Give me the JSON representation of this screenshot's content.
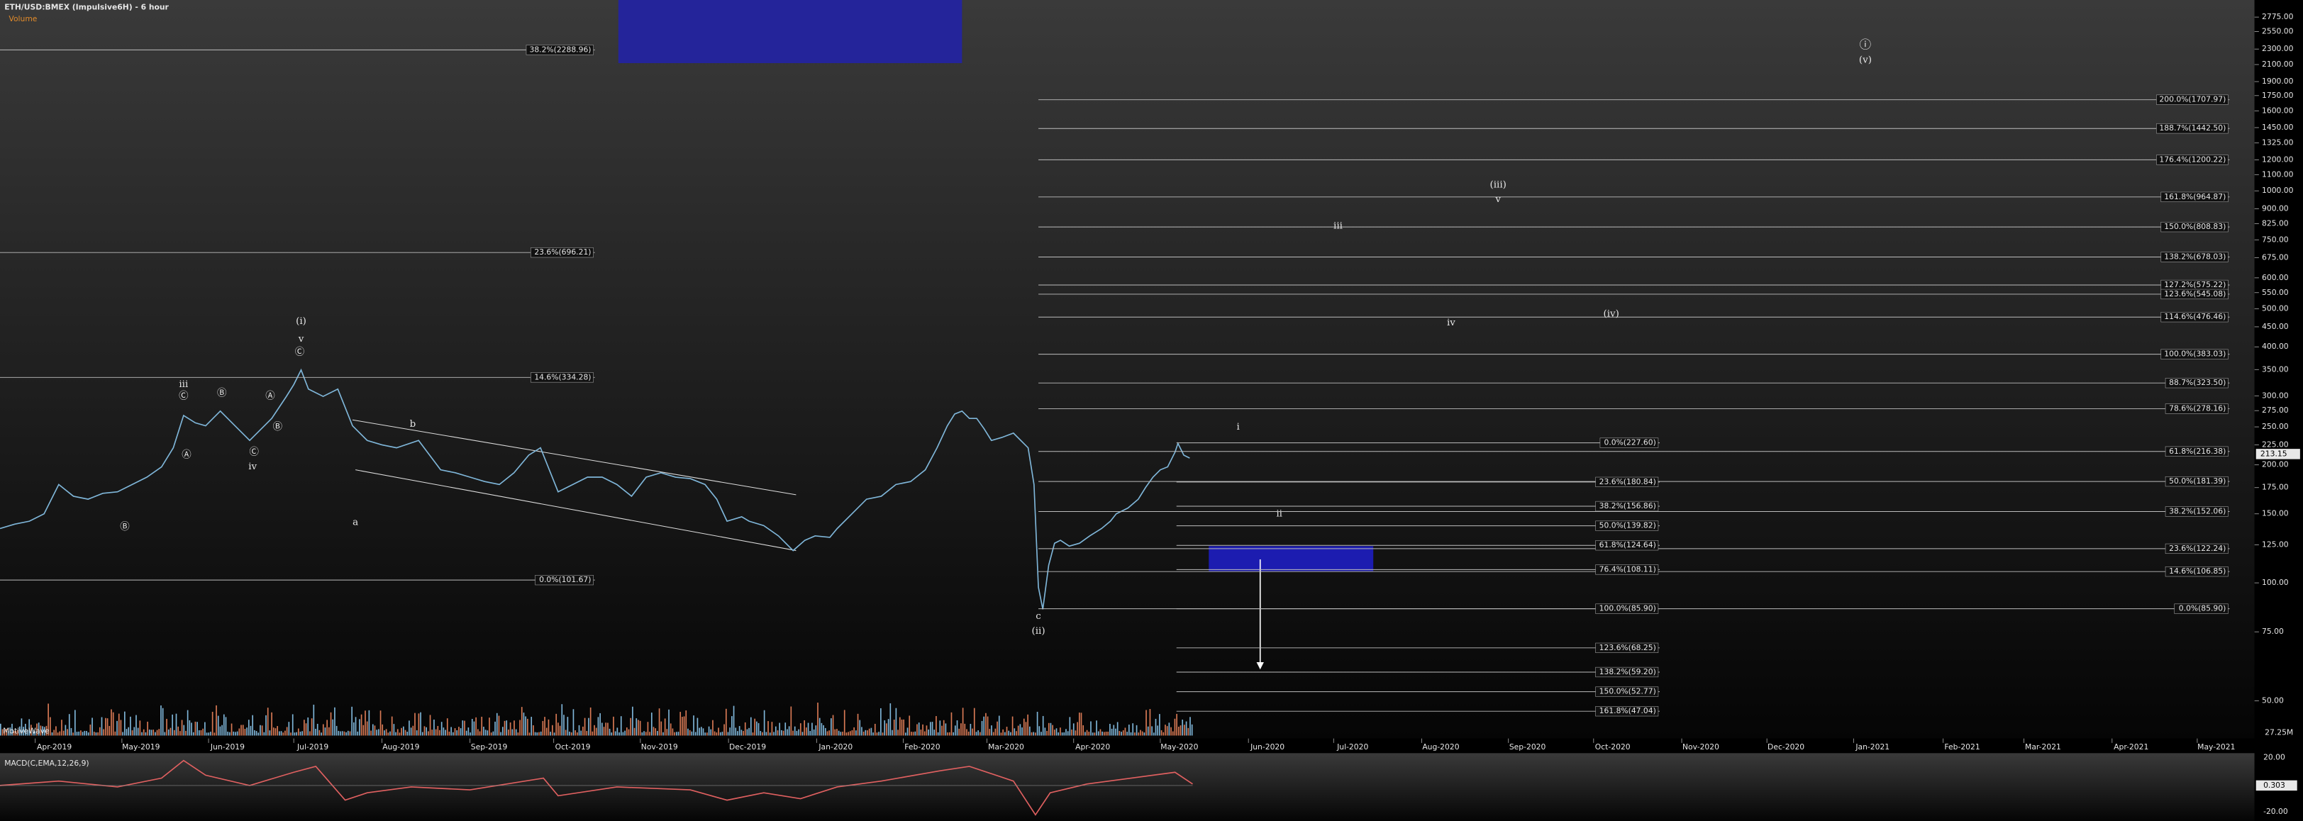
{
  "header": {
    "title": "ETH/USD:BMEX (Impulsive6H) - 6 hour",
    "volume_label": "Volume",
    "watermark": "MotiveWave"
  },
  "price_axis": {
    "scale": "log",
    "ticks": [
      {
        "value": 2775,
        "label": "2775.00"
      },
      {
        "value": 2550,
        "label": "2550.00"
      },
      {
        "value": 2300,
        "label": "2300.00"
      },
      {
        "value": 2100,
        "label": "2100.00"
      },
      {
        "value": 1900,
        "label": "1900.00"
      },
      {
        "value": 1750,
        "label": "1750.00"
      },
      {
        "value": 1600,
        "label": "1600.00"
      },
      {
        "value": 1450,
        "label": "1450.00"
      },
      {
        "value": 1325,
        "label": "1325.00"
      },
      {
        "value": 1200,
        "label": "1200.00"
      },
      {
        "value": 1100,
        "label": "1100.00"
      },
      {
        "value": 1000,
        "label": "1000.00"
      },
      {
        "value": 900,
        "label": "900.00"
      },
      {
        "value": 825,
        "label": "825.00"
      },
      {
        "value": 750,
        "label": "750.00"
      },
      {
        "value": 675,
        "label": "675.00"
      },
      {
        "value": 600,
        "label": "600.00"
      },
      {
        "value": 550,
        "label": "550.00"
      },
      {
        "value": 500,
        "label": "500.00"
      },
      {
        "value": 450,
        "label": "450.00"
      },
      {
        "value": 400,
        "label": "400.00"
      },
      {
        "value": 350,
        "label": "350.00"
      },
      {
        "value": 300,
        "label": "300.00"
      },
      {
        "value": 275,
        "label": "275.00"
      },
      {
        "value": 250,
        "label": "250.00"
      },
      {
        "value": 225,
        "label": "225.00"
      },
      {
        "value": 200,
        "label": "200.00"
      },
      {
        "value": 175,
        "label": "175.00"
      },
      {
        "value": 150,
        "label": "150.00"
      },
      {
        "value": 125,
        "label": "125.00"
      },
      {
        "value": 100,
        "label": "100.00"
      },
      {
        "value": 75,
        "label": "75.00"
      },
      {
        "value": 50,
        "label": "50.00"
      }
    ],
    "last_price": {
      "value": 213.15,
      "label": "213.15"
    }
  },
  "time_axis": {
    "labels": [
      "Apr-2019",
      "May-2019",
      "Jun-2019",
      "Jul-2019",
      "Aug-2019",
      "Sep-2019",
      "Oct-2019",
      "Nov-2019",
      "Dec-2019",
      "Jan-2020",
      "Feb-2020",
      "Mar-2020",
      "Apr-2020",
      "May-2020",
      "Jun-2020",
      "Jul-2020",
      "Aug-2020",
      "Sep-2020",
      "Oct-2020",
      "Nov-2020",
      "Dec-2020",
      "Jan-2021",
      "Feb-2021",
      "Mar-2021",
      "Apr-2021",
      "May-2021"
    ]
  },
  "fib_groups": [
    {
      "levels": [
        {
          "label": "38.2%(2288.96)",
          "price": 2288.96
        },
        {
          "label": "23.6%(696.21)",
          "price": 696.21
        },
        {
          "label": "14.6%(334.28)",
          "price": 334.28
        },
        {
          "label": "0.0%(101.67)",
          "price": 101.67
        }
      ]
    },
    {
      "levels": [
        {
          "label": "200.0%(1707.97)",
          "price": 1707.97
        },
        {
          "label": "188.7%(1442.50)",
          "price": 1442.5
        },
        {
          "label": "176.4%(1200.22)",
          "price": 1200.22
        },
        {
          "label": "161.8%(964.87)",
          "price": 964.87
        },
        {
          "label": "150.0%(808.83)",
          "price": 808.83
        },
        {
          "label": "138.2%(678.03)",
          "price": 678.03
        },
        {
          "label": "127.2%(575.22)",
          "price": 575.22
        },
        {
          "label": "123.6%(545.08)",
          "price": 545.08
        },
        {
          "label": "114.6%(476.46)",
          "price": 476.46
        },
        {
          "label": "100.0%(383.03)",
          "price": 383.03
        },
        {
          "label": "88.7%(323.50)",
          "price": 323.5
        },
        {
          "label": "78.6%(278.16)",
          "price": 278.16
        },
        {
          "label": "61.8%(216.38)",
          "price": 216.38
        },
        {
          "label": "50.0%(181.39)",
          "price": 181.39
        },
        {
          "label": "38.2%(152.06)",
          "price": 152.06
        },
        {
          "label": "23.6%(122.24)",
          "price": 122.24
        },
        {
          "label": "14.6%(106.85)",
          "price": 106.85
        },
        {
          "label": "0.0%(85.90)",
          "price": 85.9
        }
      ]
    },
    {
      "levels": [
        {
          "label": "0.0%(227.60)",
          "price": 227.6
        },
        {
          "label": "23.6%(180.84)",
          "price": 180.84
        },
        {
          "label": "38.2%(156.86)",
          "price": 156.86
        },
        {
          "label": "50.0%(139.82)",
          "price": 139.82
        },
        {
          "label": "61.8%(124.64)",
          "price": 124.64
        },
        {
          "label": "76.4%(108.11)",
          "price": 108.11
        },
        {
          "label": "100.0%(85.90)",
          "price": 85.9
        },
        {
          "label": "123.6%(68.25)",
          "price": 68.25
        },
        {
          "label": "138.2%(59.20)",
          "price": 59.2
        },
        {
          "label": "150.0%(52.77)",
          "price": 52.77
        },
        {
          "label": "161.8%(47.04)",
          "price": 47.04
        }
      ]
    }
  ],
  "wave_labels": [
    "(i)",
    "v",
    "Ⓒ",
    "iii",
    "Ⓒ",
    "Ⓑ",
    "Ⓐ",
    "Ⓑ",
    "Ⓐ",
    "Ⓒ",
    "iv",
    "Ⓑ",
    "a",
    "b",
    "c",
    "(ii)",
    "i",
    "ii",
    "iii",
    "(iii)",
    "v",
    "iv",
    "(iv)",
    "ⓘ",
    "(v)"
  ],
  "volume_pane": {
    "axis_label": "27.25M"
  },
  "macd_pane": {
    "title": "MACD(C,EMA,12,26,9)",
    "axis_labels": [
      "20.00",
      "0.303",
      "-20.00"
    ]
  }
}
